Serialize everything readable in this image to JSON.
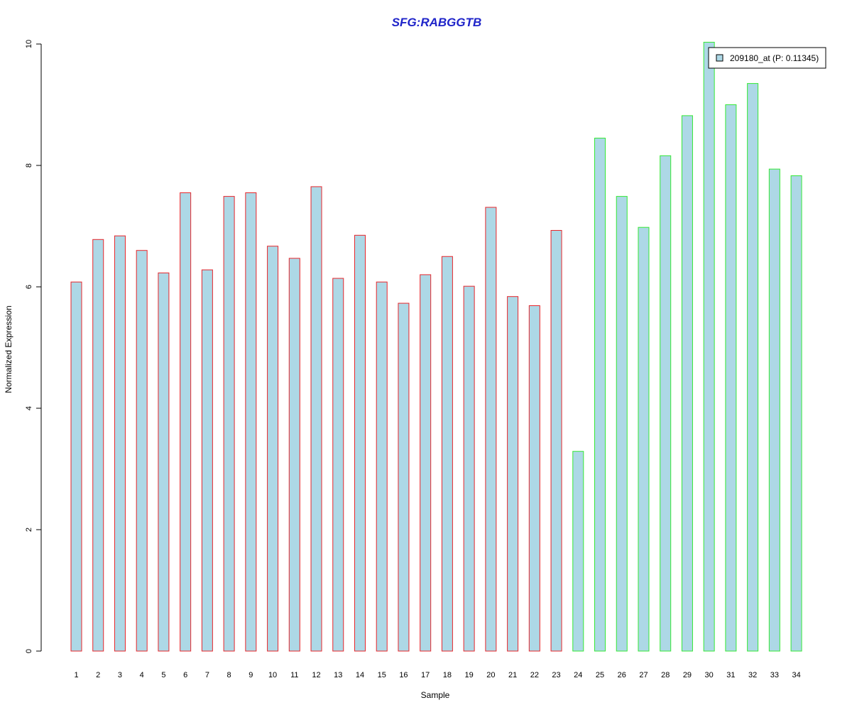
{
  "chart_data": {
    "type": "bar",
    "title": "SFG:RABGGTB",
    "xlabel": "Sample",
    "ylabel": "Normalized Expression",
    "ylim": [
      0,
      10
    ],
    "yticks": [
      "0",
      "2",
      "4",
      "6",
      "8",
      "10"
    ],
    "categories": [
      "1",
      "2",
      "3",
      "4",
      "5",
      "6",
      "7",
      "8",
      "9",
      "10",
      "11",
      "12",
      "13",
      "14",
      "15",
      "16",
      "17",
      "18",
      "19",
      "20",
      "21",
      "22",
      "23",
      "24",
      "25",
      "26",
      "27",
      "28",
      "29",
      "30",
      "31",
      "32",
      "33",
      "34"
    ],
    "series": [
      {
        "name": "209180_at (P: 0.11345)",
        "values": [
          6.08,
          6.78,
          6.84,
          6.6,
          6.23,
          7.55,
          6.28,
          7.49,
          7.55,
          6.67,
          6.47,
          7.65,
          6.14,
          6.85,
          6.08,
          5.73,
          6.2,
          6.5,
          6.01,
          7.31,
          5.84,
          5.69,
          6.93,
          3.29,
          8.45,
          7.49,
          6.98,
          8.16,
          8.82,
          10.03,
          9.0,
          9.35,
          7.94,
          7.83
        ]
      }
    ],
    "groups": [
      {
        "from": 1,
        "to": 23,
        "outline_color": "#e8262b"
      },
      {
        "from": 24,
        "to": 34,
        "outline_color": "#35e835"
      }
    ],
    "bar_fill_color": "#add8e6",
    "title_color": "#1f24c9",
    "legend": {
      "label": "209180_at (P: 0.11345)",
      "position": "top-right"
    },
    "grid": false
  }
}
